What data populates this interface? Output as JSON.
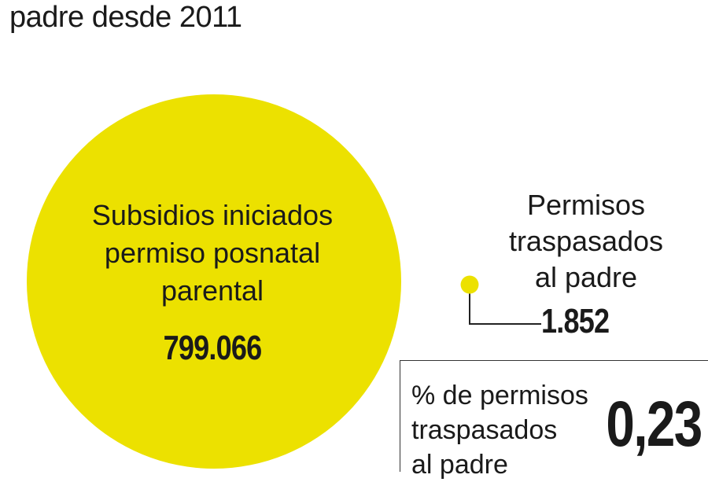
{
  "header": {
    "title": "padre desde 2011"
  },
  "colors": {
    "accent": "#ece100",
    "line": "#222222"
  },
  "chart_data": {
    "type": "bubble",
    "items": [
      {
        "label_lines": [
          "Subsidios iniciados",
          "permiso posnatal",
          "parental"
        ],
        "value": 799066,
        "value_label": "799.066"
      },
      {
        "label_lines": [
          "Permisos",
          "traspasados",
          "al padre"
        ],
        "value": 1852,
        "value_label": "1.852"
      }
    ],
    "percentage": {
      "label_lines": [
        "% de permisos",
        "traspasados",
        "al padre"
      ],
      "value": 0.23,
      "value_label": "0,23"
    }
  }
}
